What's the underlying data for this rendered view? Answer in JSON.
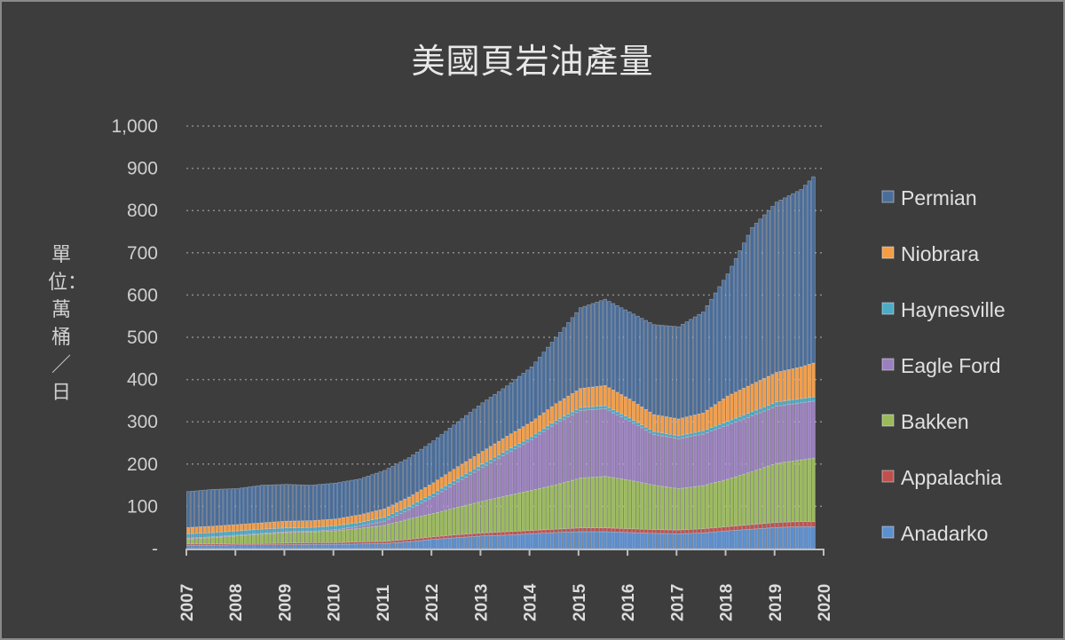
{
  "chart_data": {
    "type": "bar",
    "stacked": true,
    "title": "美國頁岩油產量",
    "ylabel": "單位：萬桶／日",
    "xlabel": "",
    "ylim": [
      0,
      1000
    ],
    "y_ticks": [
      "-",
      "100",
      "200",
      "300",
      "400",
      "500",
      "600",
      "700",
      "800",
      "900",
      "1,000"
    ],
    "x_ticks": [
      "2007",
      "2008",
      "2009",
      "2010",
      "2011",
      "2012",
      "2013",
      "2014",
      "2015",
      "2016",
      "2017",
      "2018",
      "2019",
      "2020"
    ],
    "grid": "horizontal dotted",
    "legend_placement": "right",
    "x": [
      "2007-01",
      "2007-07",
      "2008-01",
      "2008-07",
      "2009-01",
      "2009-07",
      "2010-01",
      "2010-07",
      "2011-01",
      "2011-07",
      "2012-01",
      "2012-07",
      "2013-01",
      "2013-07",
      "2014-01",
      "2014-07",
      "2015-01",
      "2015-07",
      "2016-01",
      "2016-07",
      "2017-01",
      "2017-07",
      "2018-01",
      "2018-07",
      "2019-01",
      "2019-07",
      "2019-10"
    ],
    "series": [
      {
        "name": "Anadarko",
        "color": "#5b8fd0",
        "values": [
          8,
          8,
          9,
          9,
          9,
          10,
          10,
          11,
          12,
          16,
          22,
          26,
          30,
          32,
          35,
          38,
          40,
          40,
          38,
          36,
          35,
          37,
          42,
          46,
          50,
          52,
          52
        ]
      },
      {
        "name": "Appalachia",
        "color": "#c0504d",
        "values": [
          3,
          3,
          3,
          3,
          4,
          4,
          4,
          5,
          5,
          6,
          6,
          7,
          7,
          8,
          8,
          8,
          9,
          9,
          9,
          9,
          9,
          10,
          10,
          11,
          12,
          12,
          12
        ]
      },
      {
        "name": "Bakken",
        "color": "#9bbb59",
        "values": [
          12,
          15,
          18,
          22,
          25,
          25,
          28,
          32,
          38,
          48,
          55,
          65,
          75,
          85,
          95,
          105,
          118,
          122,
          115,
          105,
          98,
          102,
          112,
          125,
          140,
          146,
          150
        ]
      },
      {
        "name": "Eagle Ford",
        "color": "#9b80bf",
        "values": [
          2,
          2,
          2,
          2,
          2,
          2,
          3,
          5,
          10,
          22,
          40,
          60,
          80,
          100,
          120,
          145,
          160,
          160,
          140,
          120,
          118,
          122,
          128,
          132,
          135,
          135,
          135
        ]
      },
      {
        "name": "Haynesville",
        "color": "#4bacc6",
        "values": [
          10,
          10,
          10,
          10,
          9,
          9,
          9,
          9,
          9,
          8,
          8,
          8,
          8,
          8,
          7,
          7,
          7,
          7,
          7,
          7,
          7,
          8,
          9,
          10,
          10,
          10,
          10
        ]
      },
      {
        "name": "Niobrara",
        "color": "#f59d45",
        "values": [
          15,
          15,
          15,
          15,
          16,
          16,
          16,
          18,
          20,
          22,
          25,
          28,
          30,
          33,
          35,
          40,
          45,
          48,
          45,
          40,
          40,
          42,
          60,
          65,
          70,
          75,
          80
        ]
      },
      {
        "name": "Permian",
        "color": "#4a6d99",
        "values": [
          85,
          87,
          85,
          89,
          87,
          84,
          85,
          85,
          91,
          93,
          99,
          106,
          115,
          119,
          130,
          157,
          191,
          204,
          206,
          213,
          218,
          239,
          289,
          371,
          403,
          420,
          441
        ]
      }
    ],
    "legend_order": [
      "Permian",
      "Niobrara",
      "Haynesville",
      "Eagle Ford",
      "Bakken",
      "Appalachia",
      "Anadarko"
    ]
  }
}
